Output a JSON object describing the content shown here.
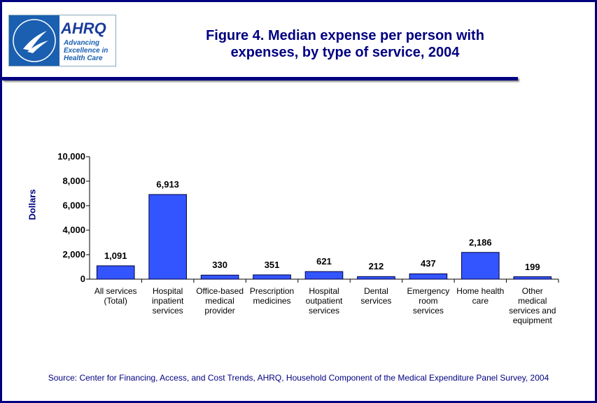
{
  "logo": {
    "name": "AHRQ",
    "tagline": "Advancing Excellence in Health Care"
  },
  "chart_data": {
    "type": "bar",
    "title": "Figure 4. Median expense per person with expenses, by type of service, 2004",
    "y_label": "Dollars",
    "categories": [
      "All services (Total)",
      "Hospital inpatient services",
      "Office-based medical provider",
      "Prescription medicines",
      "Hospital outpatient services",
      "Dental services",
      "Emergency room services",
      "Home health care",
      "Other medical services and equipment"
    ],
    "values": [
      1091,
      6913,
      330,
      351,
      621,
      212,
      437,
      2186,
      199
    ],
    "value_labels": [
      "1,091",
      "6,913",
      "330",
      "351",
      "621",
      "212",
      "437",
      "2,186",
      "199"
    ],
    "color": "#3355ff",
    "ylim": [
      0,
      10000
    ],
    "yticks": [
      0,
      {
        "value": 2000,
        "label": "2,000"
      },
      {
        "value": 4000,
        "label": "4,000"
      },
      {
        "value": 6000,
        "label": "6,000"
      },
      {
        "value": 8000,
        "label": "8,000"
      },
      {
        "value": 10000,
        "label": "10,000"
      }
    ],
    "grid": false,
    "source": "Source: Center for Financing, Access, and Cost Trends, AHRQ, Household Component of the Medical Expenditure Panel Survey, 2004"
  }
}
